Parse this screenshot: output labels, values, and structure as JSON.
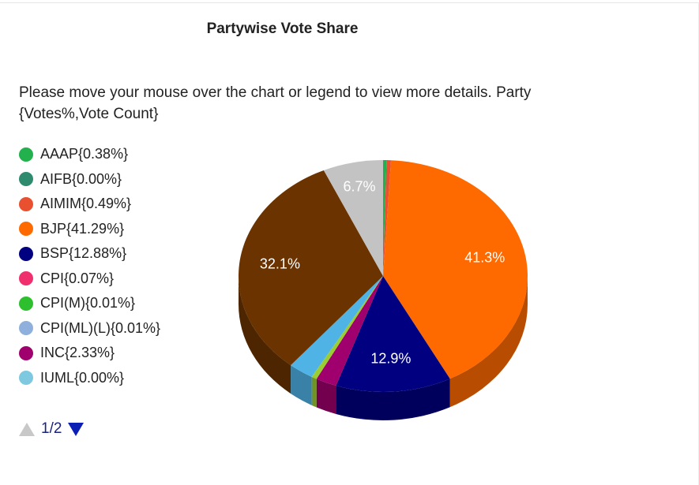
{
  "header": {
    "title": "Partywise Vote Share",
    "instructions": "Please move your mouse over the chart or legend to view more details. Party {Votes%,Vote Count}"
  },
  "legend_items": [
    {
      "label": "AAAP{0.38%}",
      "color": "#22b14c"
    },
    {
      "label": "AIFB{0.00%}",
      "color": "#2e8b6e"
    },
    {
      "label": "AIMIM{0.49%}",
      "color": "#e8502f"
    },
    {
      "label": "BJP{41.29%}",
      "color": "#ff6a00"
    },
    {
      "label": "BSP{12.88%}",
      "color": "#000080"
    },
    {
      "label": "CPI{0.07%}",
      "color": "#f0306e"
    },
    {
      "label": "CPI(M){0.01%}",
      "color": "#2dbf2d"
    },
    {
      "label": "CPI(ML)(L){0.01%}",
      "color": "#8fb0dc"
    },
    {
      "label": "INC{2.33%}",
      "color": "#a0006e"
    },
    {
      "label": "IUML{0.00%}",
      "color": "#7ec8e0"
    }
  ],
  "pager": {
    "text": "1/2",
    "up_icon": "triangle-up-icon",
    "down_icon": "triangle-down-icon"
  },
  "chart_data": {
    "type": "pie",
    "title": "Partywise Vote Share",
    "legend_position": "left",
    "slices": [
      {
        "name": "AAAP",
        "value": 0.38,
        "color": "#22b14c",
        "label": ""
      },
      {
        "name": "AIMIM",
        "value": 0.49,
        "color": "#e8502f",
        "label": ""
      },
      {
        "name": "BJP",
        "value": 41.29,
        "color": "#ff6a00",
        "label": "41.3%"
      },
      {
        "name": "BSP",
        "value": 12.88,
        "color": "#000080",
        "label": "12.9%"
      },
      {
        "name": "INC",
        "value": 2.33,
        "color": "#a0006e",
        "label": ""
      },
      {
        "name": "",
        "value": 0.6,
        "color": "#9acd32",
        "label": ""
      },
      {
        "name": "",
        "value": 2.8,
        "color": "#4fb3e6",
        "label": ""
      },
      {
        "name": "",
        "value": 32.1,
        "color": "#6b3300",
        "label": "32.1%"
      },
      {
        "name": "",
        "value": 6.7,
        "color": "#c3c3c3",
        "label": "6.7%"
      }
    ]
  }
}
